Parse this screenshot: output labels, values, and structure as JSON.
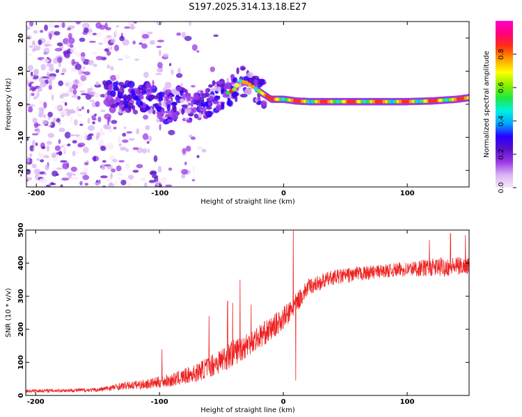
{
  "figure_title": "S197.2025.314.13.18.E27",
  "chart_data": [
    {
      "type": "heatmap",
      "title": "S197.2025.314.13.18.E27",
      "xlabel": "Height of straight line (km)",
      "ylabel": "Frequency (Hz)",
      "xlim": [
        -208,
        150
      ],
      "ylim": [
        -25,
        25
      ],
      "x_ticks": [
        -200,
        -100,
        0,
        100
      ],
      "x_tick_labels": [
        "-200",
        "-100",
        "0",
        "100"
      ],
      "y_ticks": [
        -20,
        -10,
        0,
        10,
        20
      ],
      "y_tick_labels": [
        "-20",
        "-10",
        "0",
        "10",
        "20"
      ],
      "grid": false,
      "colorbar": {
        "label": "Normalized spectral amplitude",
        "range": [
          0,
          1
        ],
        "ticks": [
          0.0,
          0.2,
          0.4,
          0.6,
          0.8
        ],
        "tick_labels": [
          "0.0",
          "0.2",
          "0.4",
          "0.6",
          "0.8"
        ],
        "colormap": [
          "#f8e8f8",
          "#d8b4f4",
          "#9a38e6",
          "#5a10c8",
          "#2800ff",
          "#00a8ff",
          "#00f0e0",
          "#20e840",
          "#8cf000",
          "#ffff00",
          "#ffa000",
          "#ff3010",
          "#ff007a",
          "#ff00cc"
        ]
      },
      "ridge_frequency_hz": [
        {
          "x": -140,
          "y": 2.5
        },
        {
          "x": -120,
          "y": 2.0
        },
        {
          "x": -105,
          "y": 1.0
        },
        {
          "x": -95,
          "y": -1.0
        },
        {
          "x": -85,
          "y": 0.5
        },
        {
          "x": -75,
          "y": -1.5
        },
        {
          "x": -65,
          "y": -0.5
        },
        {
          "x": -55,
          "y": 2.5
        },
        {
          "x": -45,
          "y": 3.5
        },
        {
          "x": -40,
          "y": 4.5
        },
        {
          "x": -35,
          "y": 7.0
        },
        {
          "x": -30,
          "y": 6.5
        },
        {
          "x": -20,
          "y": 4.0
        },
        {
          "x": -10,
          "y": 1.5
        },
        {
          "x": 0,
          "y": 1.5
        },
        {
          "x": 10,
          "y": 1.0
        },
        {
          "x": 20,
          "y": 0.8
        },
        {
          "x": 60,
          "y": 0.8
        },
        {
          "x": 100,
          "y": 0.8
        },
        {
          "x": 120,
          "y": 1.0
        },
        {
          "x": 140,
          "y": 1.5
        },
        {
          "x": 150,
          "y": 2.0
        }
      ],
      "noise_region_km": [
        -208,
        -90
      ]
    },
    {
      "type": "line",
      "xlabel": "Height of straight line (km)",
      "ylabel": "SNR (10 * v/v)",
      "xlim": [
        -208,
        150
      ],
      "ylim": [
        0,
        500
      ],
      "x_ticks": [
        -200,
        -100,
        0,
        100
      ],
      "x_tick_labels": [
        "-200",
        "-100",
        "0",
        "100"
      ],
      "y_ticks": [
        0,
        100,
        200,
        300,
        400,
        500
      ],
      "y_tick_labels": [
        "0",
        "100",
        "200",
        "300",
        "400",
        "500"
      ],
      "grid": false,
      "color": "#ee2222",
      "series": [
        {
          "name": "SNR",
          "envelope": [
            {
              "x": -208,
              "base": 12,
              "amp": 10
            },
            {
              "x": -150,
              "base": 15,
              "amp": 12
            },
            {
              "x": -130,
              "base": 25,
              "amp": 22
            },
            {
              "x": -110,
              "base": 30,
              "amp": 30
            },
            {
              "x": -90,
              "base": 40,
              "amp": 40
            },
            {
              "x": -70,
              "base": 60,
              "amp": 55
            },
            {
              "x": -50,
              "base": 95,
              "amp": 80
            },
            {
              "x": -30,
              "base": 140,
              "amp": 80
            },
            {
              "x": -10,
              "base": 190,
              "amp": 70
            },
            {
              "x": 5,
              "base": 240,
              "amp": 70
            },
            {
              "x": 20,
              "base": 320,
              "amp": 50
            },
            {
              "x": 40,
              "base": 350,
              "amp": 45
            },
            {
              "x": 60,
              "base": 360,
              "amp": 45
            },
            {
              "x": 80,
              "base": 370,
              "amp": 40
            },
            {
              "x": 100,
              "base": 375,
              "amp": 45
            },
            {
              "x": 130,
              "base": 380,
              "amp": 60
            },
            {
              "x": 150,
              "base": 385,
              "amp": 50
            }
          ],
          "spikes": [
            {
              "x": -98,
              "y": 140
            },
            {
              "x": -60,
              "y": 240
            },
            {
              "x": -45,
              "y": 285
            },
            {
              "x": -41,
              "y": 280
            },
            {
              "x": -35,
              "y": 350
            },
            {
              "x": -26,
              "y": 275
            },
            {
              "x": 8,
              "y": 500
            },
            {
              "x": 10,
              "y": 45
            },
            {
              "x": 118,
              "y": 470
            },
            {
              "x": 135,
              "y": 490
            },
            {
              "x": 147,
              "y": 485
            }
          ]
        }
      ]
    }
  ]
}
